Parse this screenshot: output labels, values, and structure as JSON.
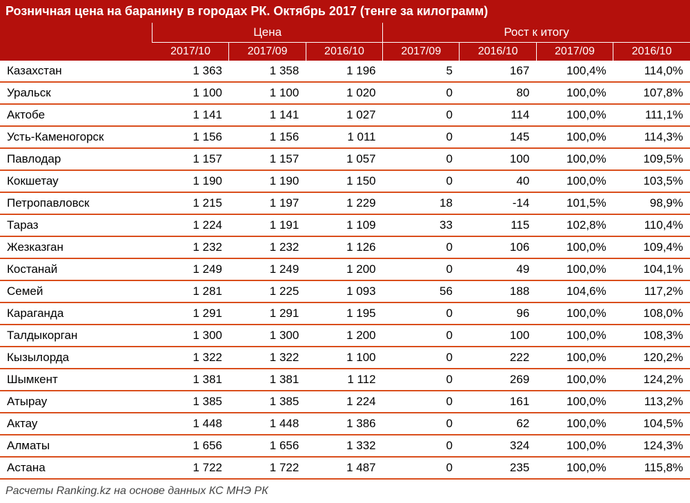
{
  "title": "Розничная цена на баранину в городах РК. Октябрь 2017 (тенге за килограмм)",
  "group_headers": {
    "blank": "",
    "price": "Цена",
    "growth": "Рост к итогу"
  },
  "sub_headers": {
    "blank": "",
    "c1": "2017/10",
    "c2": "2017/09",
    "c3": "2016/10",
    "c4": "2017/09",
    "c5": "2016/10",
    "c6": "2017/09",
    "c7": "2016/10"
  },
  "rows": [
    {
      "city": "Казахстан",
      "p1": "1 363",
      "p2": "1 358",
      "p3": "1 196",
      "d1": "5",
      "d2": "167",
      "g1": "100,4%",
      "g2": "114,0%"
    },
    {
      "city": "Уральск",
      "p1": "1 100",
      "p2": "1 100",
      "p3": "1 020",
      "d1": "0",
      "d2": "80",
      "g1": "100,0%",
      "g2": "107,8%"
    },
    {
      "city": "Актобе",
      "p1": "1 141",
      "p2": "1 141",
      "p3": "1 027",
      "d1": "0",
      "d2": "114",
      "g1": "100,0%",
      "g2": "111,1%"
    },
    {
      "city": "Усть-Каменогорск",
      "p1": "1 156",
      "p2": "1 156",
      "p3": "1 011",
      "d1": "0",
      "d2": "145",
      "g1": "100,0%",
      "g2": "114,3%"
    },
    {
      "city": "Павлодар",
      "p1": "1 157",
      "p2": "1 157",
      "p3": "1 057",
      "d1": "0",
      "d2": "100",
      "g1": "100,0%",
      "g2": "109,5%"
    },
    {
      "city": "Кокшетау",
      "p1": "1 190",
      "p2": "1 190",
      "p3": "1 150",
      "d1": "0",
      "d2": "40",
      "g1": "100,0%",
      "g2": "103,5%"
    },
    {
      "city": "Петропавловск",
      "p1": "1 215",
      "p2": "1 197",
      "p3": "1 229",
      "d1": "18",
      "d2": "-14",
      "g1": "101,5%",
      "g2": "98,9%"
    },
    {
      "city": "Тараз",
      "p1": "1 224",
      "p2": "1 191",
      "p3": "1 109",
      "d1": "33",
      "d2": "115",
      "g1": "102,8%",
      "g2": "110,4%"
    },
    {
      "city": "Жезказган",
      "p1": "1 232",
      "p2": "1 232",
      "p3": "1 126",
      "d1": "0",
      "d2": "106",
      "g1": "100,0%",
      "g2": "109,4%"
    },
    {
      "city": "Костанай",
      "p1": "1 249",
      "p2": "1 249",
      "p3": "1 200",
      "d1": "0",
      "d2": "49",
      "g1": "100,0%",
      "g2": "104,1%"
    },
    {
      "city": "Семей",
      "p1": "1 281",
      "p2": "1 225",
      "p3": "1 093",
      "d1": "56",
      "d2": "188",
      "g1": "104,6%",
      "g2": "117,2%"
    },
    {
      "city": "Караганда",
      "p1": "1 291",
      "p2": "1 291",
      "p3": "1 195",
      "d1": "0",
      "d2": "96",
      "g1": "100,0%",
      "g2": "108,0%"
    },
    {
      "city": "Талдыкорган",
      "p1": "1 300",
      "p2": "1 300",
      "p3": "1 200",
      "d1": "0",
      "d2": "100",
      "g1": "100,0%",
      "g2": "108,3%"
    },
    {
      "city": "Кызылорда",
      "p1": "1 322",
      "p2": "1 322",
      "p3": "1 100",
      "d1": "0",
      "d2": "222",
      "g1": "100,0%",
      "g2": "120,2%"
    },
    {
      "city": "Шымкент",
      "p1": "1 381",
      "p2": "1 381",
      "p3": "1 112",
      "d1": "0",
      "d2": "269",
      "g1": "100,0%",
      "g2": "124,2%"
    },
    {
      "city": "Атырау",
      "p1": "1 385",
      "p2": "1 385",
      "p3": "1 224",
      "d1": "0",
      "d2": "161",
      "g1": "100,0%",
      "g2": "113,2%"
    },
    {
      "city": "Актау",
      "p1": "1 448",
      "p2": "1 448",
      "p3": "1 386",
      "d1": "0",
      "d2": "62",
      "g1": "100,0%",
      "g2": "104,5%"
    },
    {
      "city": "Алматы",
      "p1": "1 656",
      "p2": "1 656",
      "p3": "1 332",
      "d1": "0",
      "d2": "324",
      "g1": "100,0%",
      "g2": "124,3%"
    },
    {
      "city": "Астана",
      "p1": "1 722",
      "p2": "1 722",
      "p3": "1 487",
      "d1": "0",
      "d2": "235",
      "g1": "100,0%",
      "g2": "115,8%"
    }
  ],
  "footer": "Расчеты Ranking.kz на основе данных КС МНЭ РК",
  "styling": {
    "header_bg": "#b4100c",
    "header_fg": "#ffffff",
    "row_border": "#d94c1a",
    "body_bg": "#ffffff",
    "body_fg": "#000000",
    "title_fontsize": 18,
    "header_fontsize": 17,
    "cell_fontsize": 17,
    "footer_fontsize": 16,
    "col_widths": {
      "city": 220,
      "num": 111
    }
  }
}
